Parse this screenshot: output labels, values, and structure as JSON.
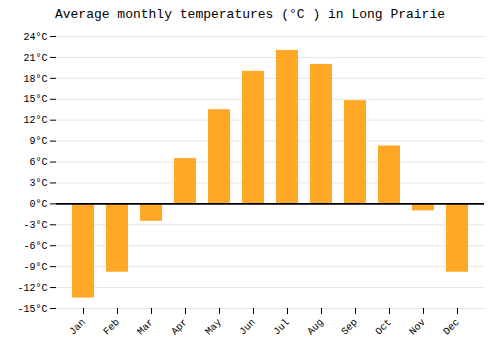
{
  "chart_data": {
    "type": "bar",
    "title": "Average monthly temperatures (°C ) in Long Prairie",
    "categories": [
      "Jan",
      "Feb",
      "Mar",
      "Apr",
      "May",
      "Jun",
      "Jul",
      "Aug",
      "Sep",
      "Oct",
      "Nov",
      "Dec"
    ],
    "values": [
      -13.5,
      -9.8,
      -2.5,
      6.5,
      13.5,
      19.0,
      22.0,
      20.0,
      14.8,
      8.3,
      -1.0,
      -9.8
    ],
    "color": "#FFA726",
    "ylim": [
      -15,
      24
    ],
    "yticks": [
      {
        "value": -15,
        "label": "-15°C"
      },
      {
        "value": -12,
        "label": "-12°C"
      },
      {
        "value": -9,
        "label": "-9°C"
      },
      {
        "value": -6,
        "label": "-6°C"
      },
      {
        "value": -3,
        "label": "-3°C"
      },
      {
        "value": 0,
        "label": "0°C"
      },
      {
        "value": 3,
        "label": "3°C"
      },
      {
        "value": 6,
        "label": "6°C"
      },
      {
        "value": 9,
        "label": "9°C"
      },
      {
        "value": 12,
        "label": "12°C"
      },
      {
        "value": 15,
        "label": "15°C"
      },
      {
        "value": 18,
        "label": "18°C"
      },
      {
        "value": 21,
        "label": "21°C"
      },
      {
        "value": 24,
        "label": "24°C"
      }
    ],
    "grid": true
  }
}
